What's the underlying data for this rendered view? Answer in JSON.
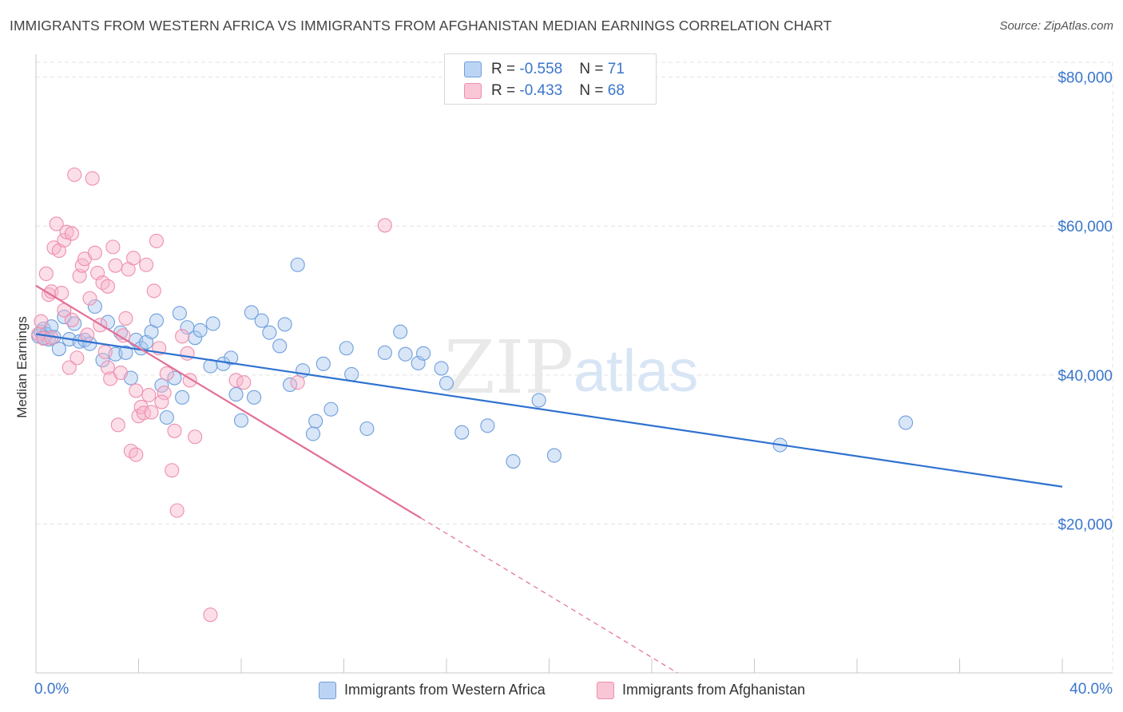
{
  "title": "IMMIGRANTS FROM WESTERN AFRICA VS IMMIGRANTS FROM AFGHANISTAN MEDIAN EARNINGS CORRELATION CHART",
  "source": "Source: ZipAtlas.com",
  "watermark": {
    "zip": "ZIP",
    "atlas": "atlas"
  },
  "legend": {
    "rows": [
      {
        "r_label": "R = ",
        "r_value": "-0.558",
        "n_label": "N = ",
        "n_value": "71"
      },
      {
        "r_label": "R = ",
        "r_value": "-0.433",
        "n_label": "N = ",
        "n_value": "68"
      }
    ]
  },
  "colors": {
    "blue_fill": "#a9c8f0",
    "blue_stroke": "#6f9fdc",
    "blue_line": "#2f72d0",
    "pink_fill": "#f7b6cb",
    "pink_stroke": "#ee8fae",
    "pink_line": "#e46f97",
    "axis_text": "#3a76cc",
    "grid": "#e3e3e3"
  },
  "chart_data": {
    "type": "scatter",
    "xlabel": "",
    "ylabel": "Median Earnings",
    "xlim": [
      0,
      40
    ],
    "ylim": [
      0,
      82000
    ],
    "x_tick_labels": [
      "0.0%",
      "40.0%"
    ],
    "y_ticks": [
      20000,
      40000,
      60000,
      80000
    ],
    "y_tick_labels": [
      "$20,000",
      "$40,000",
      "$60,000",
      "$80,000"
    ],
    "grid": true,
    "legend_position": "top-center",
    "series": [
      {
        "name": "Immigrants from Western Africa",
        "color": "blue",
        "trend": {
          "x": [
            0,
            40
          ],
          "y": [
            45500,
            25000
          ],
          "dashed_from": null
        },
        "points": [
          [
            0.1,
            45200
          ],
          [
            0.2,
            45800
          ],
          [
            0.3,
            46200
          ],
          [
            0.4,
            45500
          ],
          [
            0.5,
            44800
          ],
          [
            0.6,
            46500
          ],
          [
            0.7,
            45100
          ],
          [
            0.3,
            45000
          ],
          [
            0.9,
            43500
          ],
          [
            1.1,
            47800
          ],
          [
            1.3,
            44800
          ],
          [
            1.5,
            46900
          ],
          [
            1.7,
            44500
          ],
          [
            1.9,
            44700
          ],
          [
            2.1,
            44200
          ],
          [
            2.3,
            49200
          ],
          [
            2.6,
            42000
          ],
          [
            2.8,
            47100
          ],
          [
            3.1,
            42800
          ],
          [
            3.3,
            45700
          ],
          [
            3.5,
            43000
          ],
          [
            3.7,
            39600
          ],
          [
            3.9,
            44700
          ],
          [
            4.1,
            43600
          ],
          [
            4.3,
            44400
          ],
          [
            4.5,
            45800
          ],
          [
            4.7,
            47300
          ],
          [
            4.9,
            38600
          ],
          [
            5.1,
            34300
          ],
          [
            5.4,
            39600
          ],
          [
            5.6,
            48300
          ],
          [
            5.7,
            37000
          ],
          [
            5.9,
            46400
          ],
          [
            6.2,
            45000
          ],
          [
            6.4,
            46000
          ],
          [
            6.8,
            41200
          ],
          [
            6.9,
            46900
          ],
          [
            7.3,
            41500
          ],
          [
            7.6,
            42300
          ],
          [
            7.8,
            37400
          ],
          [
            8.0,
            33900
          ],
          [
            8.4,
            48400
          ],
          [
            8.5,
            37000
          ],
          [
            8.8,
            47300
          ],
          [
            9.1,
            45700
          ],
          [
            9.5,
            43900
          ],
          [
            9.7,
            46800
          ],
          [
            9.9,
            38700
          ],
          [
            10.2,
            54800
          ],
          [
            10.4,
            40600
          ],
          [
            10.9,
            33800
          ],
          [
            10.8,
            32100
          ],
          [
            11.2,
            41500
          ],
          [
            11.5,
            35400
          ],
          [
            12.1,
            43600
          ],
          [
            12.3,
            40100
          ],
          [
            12.9,
            32800
          ],
          [
            13.6,
            43000
          ],
          [
            14.2,
            45800
          ],
          [
            14.4,
            42800
          ],
          [
            14.9,
            41600
          ],
          [
            15.1,
            42900
          ],
          [
            15.8,
            40900
          ],
          [
            16.0,
            38900
          ],
          [
            16.6,
            32300
          ],
          [
            17.6,
            33200
          ],
          [
            18.6,
            28400
          ],
          [
            19.6,
            36600
          ],
          [
            20.2,
            29200
          ],
          [
            29.0,
            30600
          ],
          [
            33.9,
            33600
          ]
        ]
      },
      {
        "name": "Immigrants from Afghanistan",
        "color": "pink",
        "trend": {
          "x": [
            0,
            25
          ],
          "y": [
            52000,
            0
          ],
          "dashed_from": 15.0
        },
        "points": [
          [
            0.1,
            45500
          ],
          [
            0.2,
            47200
          ],
          [
            0.3,
            44900
          ],
          [
            0.4,
            53600
          ],
          [
            0.5,
            50800
          ],
          [
            0.6,
            51200
          ],
          [
            0.7,
            57100
          ],
          [
            0.8,
            60300
          ],
          [
            0.9,
            56700
          ],
          [
            1.0,
            51000
          ],
          [
            1.1,
            58100
          ],
          [
            1.2,
            59200
          ],
          [
            1.3,
            41000
          ],
          [
            1.4,
            59000
          ],
          [
            1.5,
            66900
          ],
          [
            1.6,
            42300
          ],
          [
            1.7,
            53300
          ],
          [
            1.8,
            54700
          ],
          [
            1.9,
            55600
          ],
          [
            2.0,
            45400
          ],
          [
            2.1,
            50300
          ],
          [
            2.2,
            66400
          ],
          [
            2.3,
            56400
          ],
          [
            2.4,
            53700
          ],
          [
            2.5,
            46700
          ],
          [
            2.6,
            52400
          ],
          [
            2.7,
            43100
          ],
          [
            2.8,
            41000
          ],
          [
            2.9,
            39500
          ],
          [
            3.0,
            57200
          ],
          [
            3.1,
            54700
          ],
          [
            3.2,
            33300
          ],
          [
            3.3,
            40300
          ],
          [
            3.4,
            45300
          ],
          [
            3.5,
            47600
          ],
          [
            3.6,
            54200
          ],
          [
            3.7,
            29800
          ],
          [
            3.8,
            55700
          ],
          [
            3.9,
            29300
          ],
          [
            4.0,
            34500
          ],
          [
            4.1,
            35700
          ],
          [
            4.2,
            34900
          ],
          [
            4.3,
            54800
          ],
          [
            4.4,
            37300
          ],
          [
            4.5,
            35000
          ],
          [
            4.6,
            51300
          ],
          [
            4.7,
            58000
          ],
          [
            4.8,
            43600
          ],
          [
            5.0,
            37600
          ],
          [
            5.1,
            40200
          ],
          [
            5.3,
            27200
          ],
          [
            5.4,
            32500
          ],
          [
            5.5,
            21800
          ],
          [
            5.7,
            45200
          ],
          [
            6.0,
            39300
          ],
          [
            6.2,
            31700
          ],
          [
            6.8,
            7800
          ],
          [
            7.8,
            39300
          ],
          [
            8.1,
            39000
          ],
          [
            10.2,
            39000
          ],
          [
            13.6,
            60100
          ],
          [
            1.4,
            47400
          ],
          [
            2.8,
            51900
          ],
          [
            3.9,
            37900
          ],
          [
            4.9,
            36400
          ],
          [
            5.9,
            42900
          ],
          [
            1.1,
            48700
          ],
          [
            0.6,
            45000
          ]
        ]
      }
    ]
  }
}
